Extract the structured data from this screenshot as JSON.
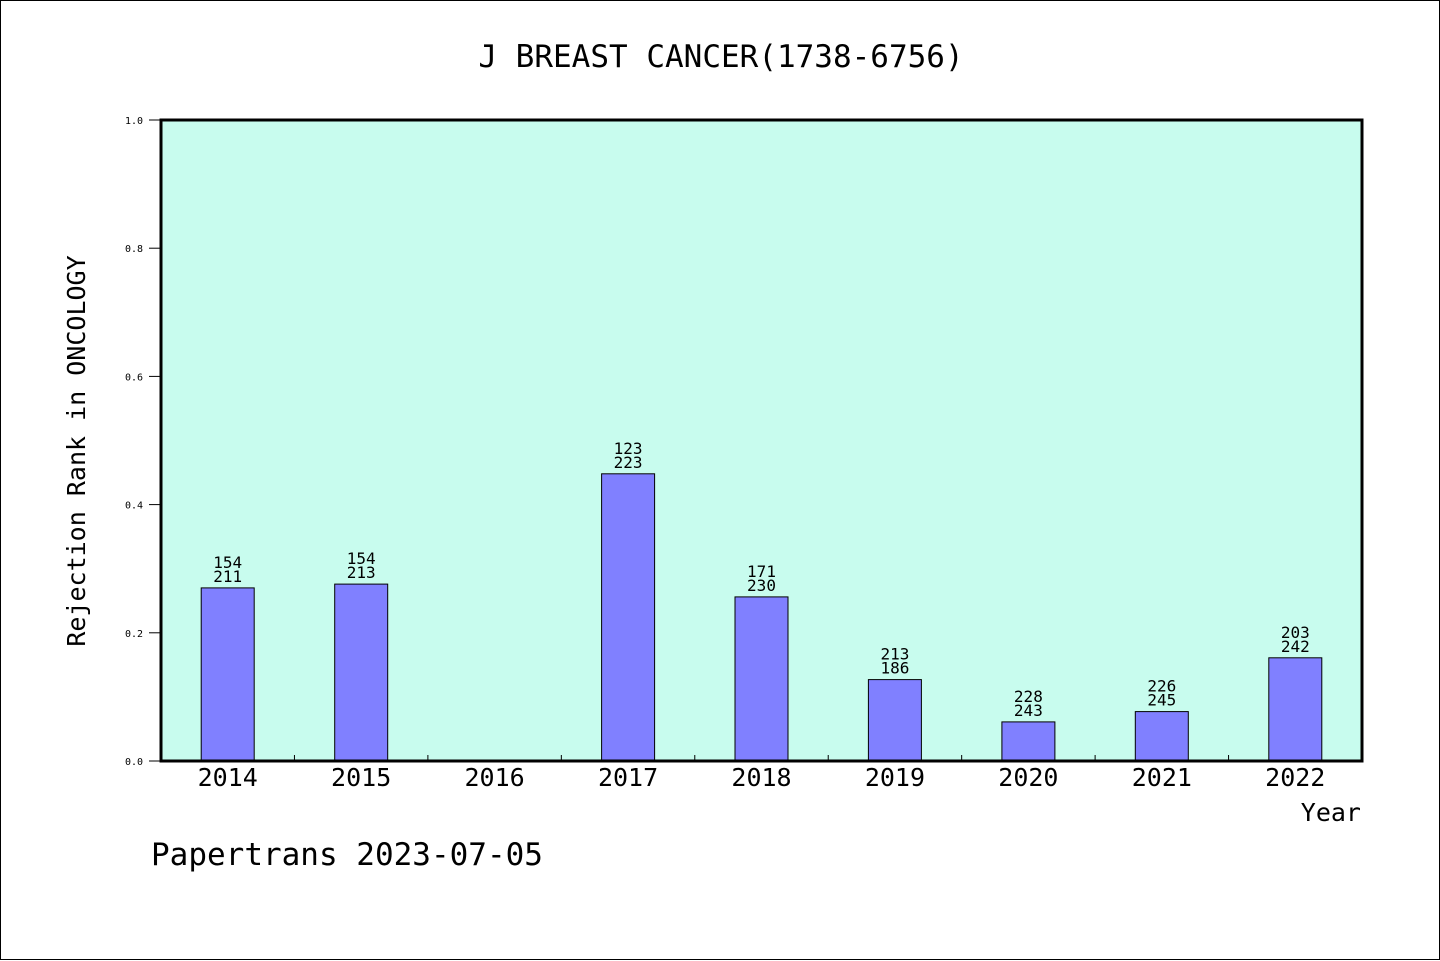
{
  "chart_data": {
    "type": "bar",
    "title": "J BREAST CANCER(1738-6756)",
    "xlabel": "Year",
    "ylabel": "Rejection Rank in ONCOLOGY",
    "ylim": [
      0,
      1.0
    ],
    "yticks": [
      "0.0",
      "0.2",
      "0.4",
      "0.6",
      "0.8",
      "1.0"
    ],
    "categories": [
      "2014",
      "2015",
      "2016",
      "2017",
      "2018",
      "2019",
      "2020",
      "2021",
      "2022"
    ],
    "values": [
      0.27,
      0.276,
      null,
      0.448,
      0.256,
      0.127,
      0.061,
      0.077,
      0.161
    ],
    "labels_top": [
      "154",
      "154",
      "",
      "123",
      "171",
      "213",
      "228",
      "226",
      "203"
    ],
    "labels_bottom": [
      "211",
      "213",
      "",
      "223",
      "230",
      "186",
      "243",
      "245",
      "242"
    ],
    "plot_background": "#c8fcee",
    "bar_color": "#8080ff",
    "grid": false
  },
  "footer": "Papertrans 2023-07-05"
}
